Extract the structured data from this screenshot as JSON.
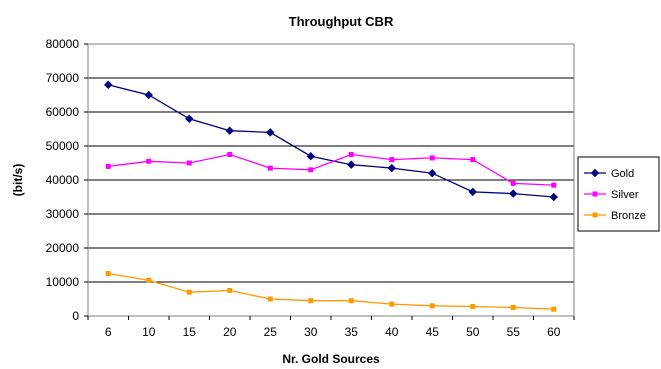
{
  "chart_data": {
    "type": "line",
    "title": "Throughput CBR",
    "xlabel": "Nr. Gold Sources",
    "ylabel": "(bit/s)",
    "categories": [
      "6",
      "10",
      "15",
      "20",
      "25",
      "30",
      "35",
      "40",
      "45",
      "50",
      "55",
      "60"
    ],
    "ylim": [
      0,
      80000
    ],
    "yticks": [
      0,
      10000,
      20000,
      30000,
      40000,
      50000,
      60000,
      70000,
      80000
    ],
    "grid": "horizontal",
    "legend_position": "right",
    "series": [
      {
        "name": "Gold",
        "color": "#000080",
        "marker": "diamond",
        "values": [
          68000,
          65000,
          58000,
          54500,
          54000,
          47000,
          44500,
          43500,
          42000,
          36500,
          36000,
          35000
        ]
      },
      {
        "name": "Silver",
        "color": "#ff00ff",
        "marker": "square",
        "values": [
          44000,
          45500,
          45000,
          47500,
          43500,
          43000,
          47500,
          46000,
          46500,
          46000,
          39000,
          38500
        ]
      },
      {
        "name": "Bronze",
        "color": "#ff9900",
        "marker": "square",
        "values": [
          12500,
          10500,
          7000,
          7500,
          5000,
          4500,
          4500,
          3500,
          3000,
          2800,
          2500,
          2000
        ]
      }
    ]
  }
}
